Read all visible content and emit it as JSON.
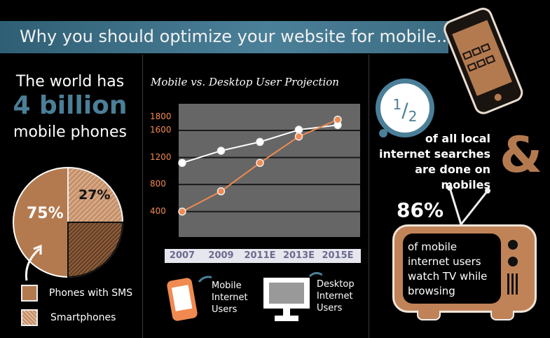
{
  "banner": {
    "title": "Why you should optimize your website for mobile..."
  },
  "left": {
    "line1": "The world has",
    "highlight": "4 billion",
    "line3": "mobile phones",
    "legend": [
      {
        "label": "Phones with SMS",
        "pattern": "solid"
      },
      {
        "label": "Smartphones",
        "pattern": "hatched"
      }
    ]
  },
  "middle": {
    "mobile_label": [
      "Mobile",
      "Internet",
      "Users"
    ],
    "desktop_label": [
      "Desktop",
      "Internet",
      "Users"
    ]
  },
  "right": {
    "fraction_num": "1",
    "fraction_den": "2",
    "search_lines": [
      "of all local",
      "internet searches",
      "are done on mobiles"
    ],
    "ampersand": "&",
    "tv_pct": "86%",
    "tv_lines": [
      "of mobile",
      "internet users",
      "watch TV while",
      "browsing"
    ]
  },
  "colors": {
    "accent_blue": "#4b7f98",
    "copper": "#b47a4f",
    "mobile_line": "#f08a50",
    "desktop_line": "#ffffff"
  },
  "chart_data": [
    {
      "type": "line",
      "title": "Mobile vs. Desktop User Projection",
      "categories": [
        "2007",
        "2009",
        "2011E",
        "2013E",
        "2015E"
      ],
      "yticks": [
        "1800",
        "1600",
        "1200",
        "800",
        "400"
      ],
      "series": [
        {
          "name": "Mobile Internet Users",
          "color": "#f08a50",
          "values": [
            400,
            700,
            1120,
            1510,
            1760
          ]
        },
        {
          "name": "Desktop Internet Users",
          "color": "#ffffff",
          "values": [
            1120,
            1300,
            1430,
            1610,
            1680
          ]
        }
      ],
      "grid": true
    },
    {
      "type": "pie",
      "slices": [
        {
          "label": "75%",
          "value": 75,
          "series": "Phones with SMS"
        },
        {
          "label": "27%",
          "value": 27,
          "series": "Smartphones"
        }
      ]
    }
  ]
}
